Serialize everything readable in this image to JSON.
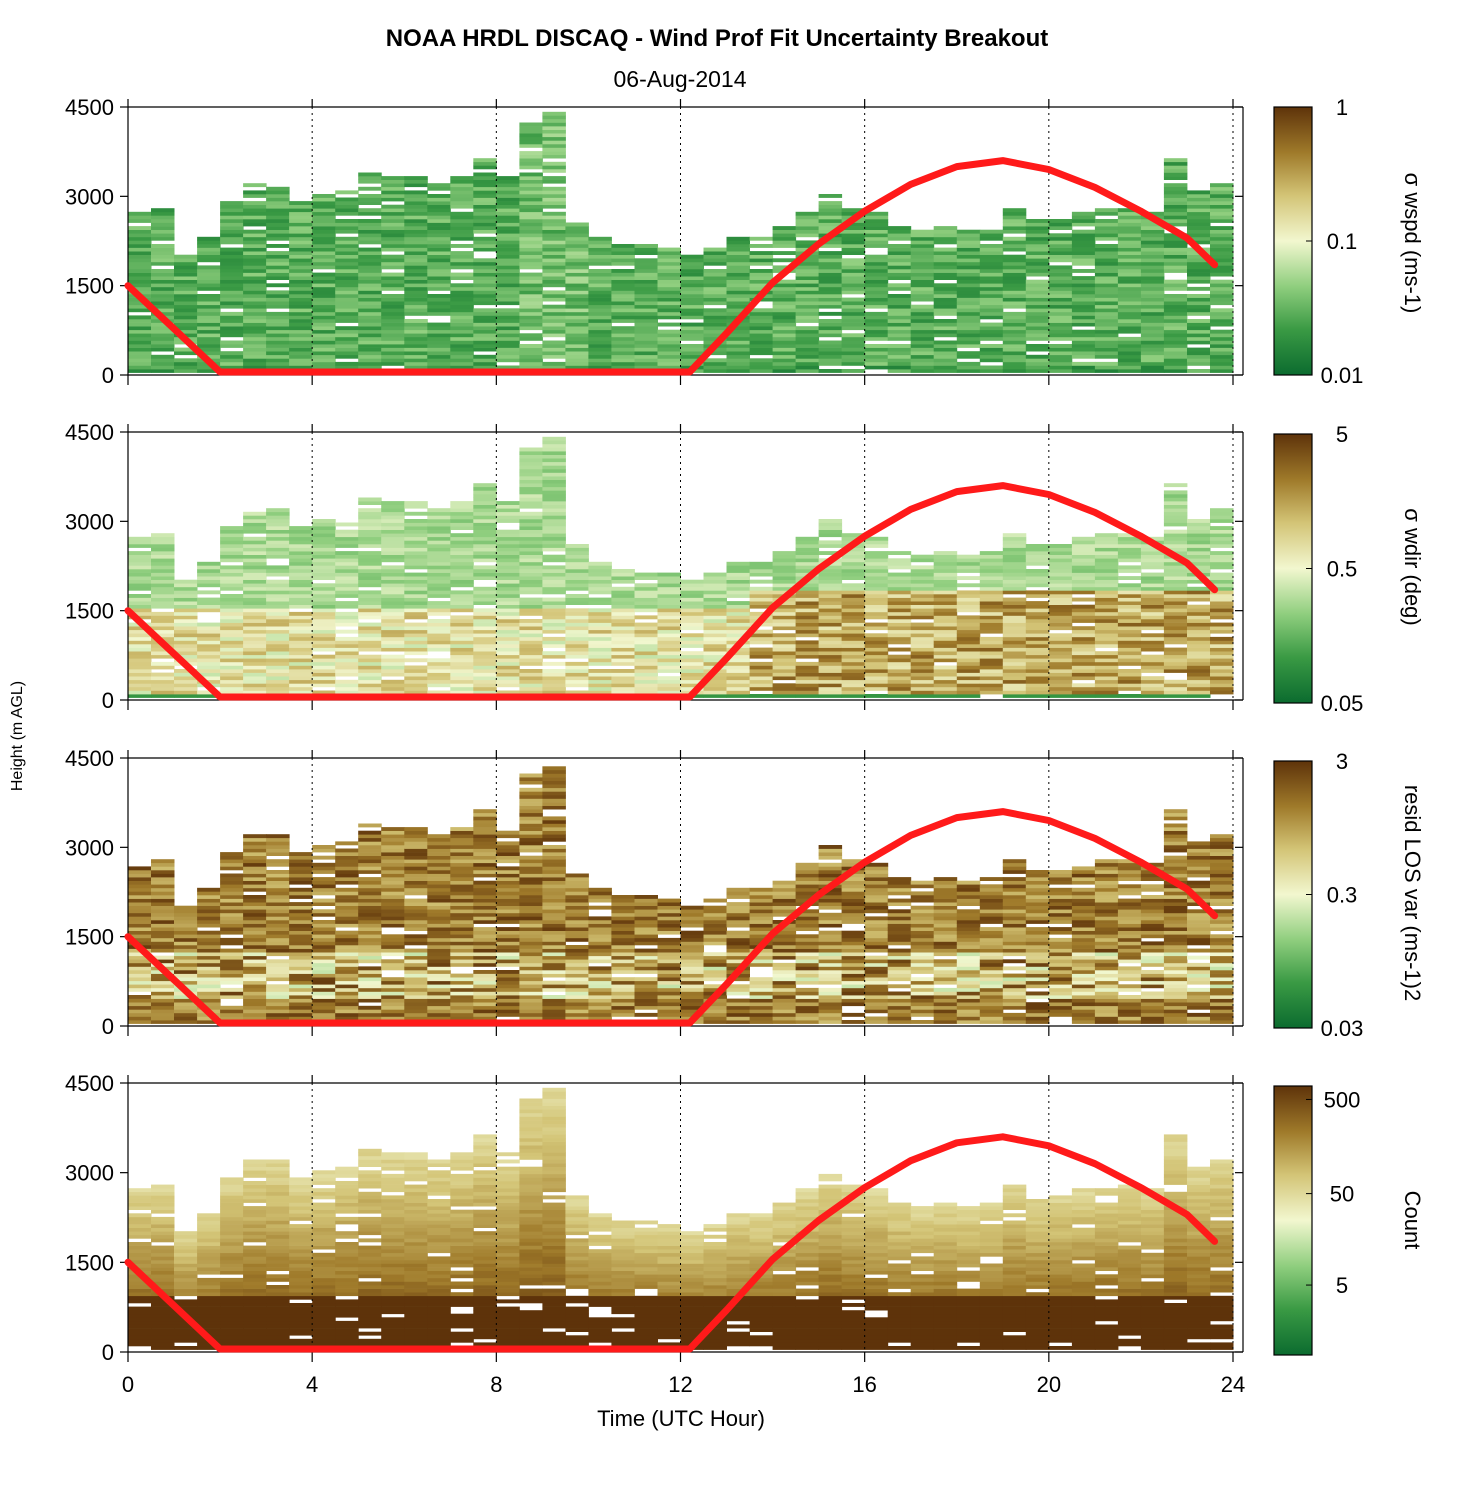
{
  "chart_data": {
    "type": "heatmap",
    "title": "NOAA HRDL DISCAQ - Wind Prof Fit Uncertainty Breakout",
    "subtitle": "06-Aug-2014",
    "xlabel": "Time (UTC Hour)",
    "ylabel": "Height (m AGL)",
    "xlim": [
      0,
      24
    ],
    "ylim": [
      0,
      4500
    ],
    "x_ticks": [
      "0",
      "4",
      "8",
      "12",
      "16",
      "20",
      "24"
    ],
    "y_ticks": [
      "0",
      "1500",
      "3000",
      "4500"
    ],
    "grid": "vertical dotted lines at 4-hour intervals",
    "colormap": [
      "#0b6b2f",
      "#3a9a44",
      "#8fce7e",
      "#f2f7cf",
      "#d3c476",
      "#9f7a2a",
      "#5e330a"
    ],
    "overlay_line_color": "#ff1a1a",
    "overlay_line": {
      "description": "boundary-layer height estimate (red line), same in all panels",
      "points": [
        [
          0,
          1500
        ],
        [
          2,
          50
        ],
        [
          12.2,
          50
        ],
        [
          13,
          700
        ],
        [
          14,
          1550
        ],
        [
          15,
          2200
        ],
        [
          16,
          2750
        ],
        [
          17,
          3200
        ],
        [
          18,
          3500
        ],
        [
          19,
          3600
        ],
        [
          20,
          3450
        ],
        [
          21,
          3150
        ],
        [
          22,
          2750
        ],
        [
          23,
          2300
        ],
        [
          23.6,
          1850
        ]
      ]
    },
    "data_envelope_top_m": [
      [
        0,
        2700
      ],
      [
        0.5,
        2800
      ],
      [
        1,
        2000
      ],
      [
        1.5,
        2300
      ],
      [
        2,
        2900
      ],
      [
        2.5,
        3200
      ],
      [
        3,
        3200
      ],
      [
        3.5,
        2900
      ],
      [
        4,
        3000
      ],
      [
        4.5,
        3100
      ],
      [
        5,
        3400
      ],
      [
        5.5,
        3300
      ],
      [
        6,
        3300
      ],
      [
        6.5,
        3200
      ],
      [
        7,
        3300
      ],
      [
        7.5,
        3600
      ],
      [
        8,
        3300
      ],
      [
        8.5,
        4200
      ],
      [
        9,
        4400
      ],
      [
        9.5,
        2600
      ],
      [
        10,
        2300
      ],
      [
        10.5,
        2200
      ],
      [
        11,
        2200
      ],
      [
        11.5,
        2100
      ],
      [
        12,
        2000
      ],
      [
        12.5,
        2100
      ],
      [
        13,
        2300
      ],
      [
        13.5,
        2300
      ],
      [
        14,
        2500
      ],
      [
        14.5,
        2700
      ],
      [
        15,
        3000
      ],
      [
        15.5,
        2800
      ],
      [
        16,
        2700
      ],
      [
        16.5,
        2500
      ],
      [
        17,
        2400
      ],
      [
        17.5,
        2500
      ],
      [
        18,
        2400
      ],
      [
        18.5,
        2500
      ],
      [
        19,
        2800
      ],
      [
        19.5,
        2600
      ],
      [
        20,
        2600
      ],
      [
        20.5,
        2700
      ],
      [
        21,
        2800
      ],
      [
        21.5,
        2800
      ],
      [
        22,
        2700
      ],
      [
        22.5,
        3600
      ],
      [
        23,
        3100
      ],
      [
        23.5,
        3200
      ]
    ],
    "panels": [
      {
        "name": "sigma-wspd",
        "colorbar_label": "σ wspd (ms-1)",
        "colorbar_ticks": [
          "1",
          "0.1",
          "0.01"
        ],
        "colorbar_range": [
          0.01,
          1
        ],
        "scale": "log",
        "dominant": "low values (green), mostly 0.02–0.1"
      },
      {
        "name": "sigma-wdir",
        "colorbar_label": "σ wdir (deg)",
        "colorbar_ticks": [
          "5",
          "0.5",
          "0.05"
        ],
        "colorbar_range": [
          0.05,
          5
        ],
        "scale": "log",
        "dominant": "green aloft, brown in lower layers after 14 UTC"
      },
      {
        "name": "resid-los-var",
        "colorbar_label": "resid LOS var (ms-1)2",
        "colorbar_ticks": [
          "3",
          "0.3",
          "0.03"
        ],
        "colorbar_range": [
          0.03,
          3
        ],
        "scale": "log",
        "dominant": "high values (brown), lighter near 500–1000 m"
      },
      {
        "name": "count",
        "colorbar_label": "Count",
        "colorbar_ticks": [
          "500",
          "50",
          "5"
        ],
        "colorbar_range": [
          1,
          1000
        ],
        "scale": "log",
        "dominant": "high counts (dark brown) below 1000 m"
      }
    ]
  }
}
